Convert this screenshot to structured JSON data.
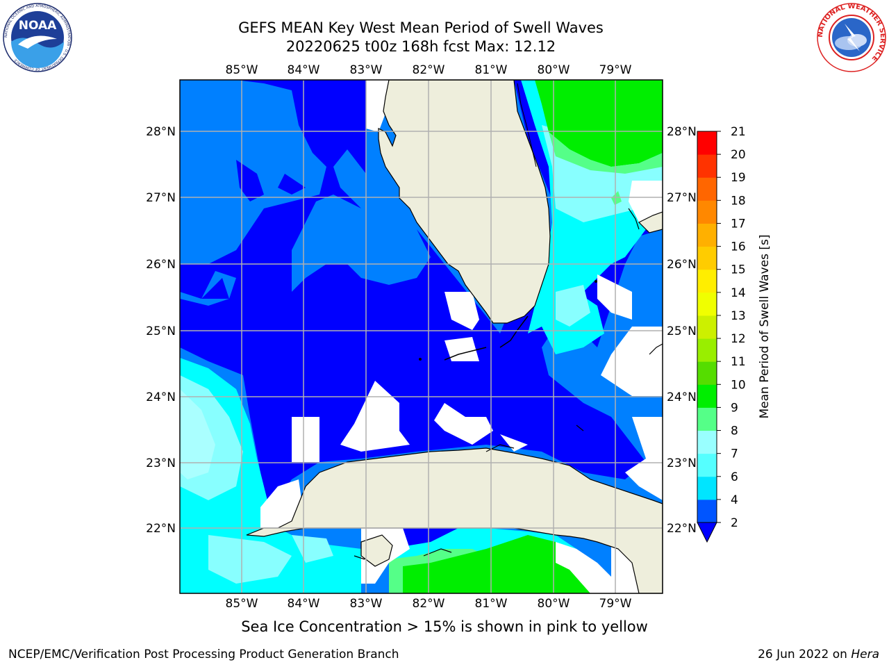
{
  "header": {
    "title_line1": "GEFS MEAN Key West Mean Period of Swell Waves",
    "title_line2": "20220625 t00z 168h fcst   Max: 12.12"
  },
  "logos": {
    "left_icon": "noaa-logo-icon",
    "left_text": "NOAA",
    "left_ring_text": "NATIONAL OCEANIC AND ATMOSPHERIC ADMINISTRATION · U.S. DEPARTMENT OF COMMERCE",
    "right_icon": "nws-logo-icon",
    "right_ring_text": "NATIONAL WEATHER SERVICE"
  },
  "map": {
    "lon_labels": [
      "85°W",
      "84°W",
      "83°W",
      "82°W",
      "81°W",
      "80°W",
      "79°W"
    ],
    "lat_labels": [
      "28°N",
      "27°N",
      "26°N",
      "25°N",
      "24°N",
      "23°N",
      "22°N"
    ],
    "colors": {
      "land": "#eeeedc",
      "grid": "#b0b0b0",
      "period_2_4": "#0000ff",
      "period_4_6": "#0080ff",
      "period_6_8": "#00ffff",
      "period_8_9": "#88ffff",
      "period_9_10": "#55ff88",
      "period_10_11": "#00ee00"
    }
  },
  "colorbar": {
    "label": "Mean Period of Swell Waves [s]",
    "ticks": [
      "2",
      "4",
      "6",
      "7",
      "8",
      "9",
      "10",
      "11",
      "12",
      "13",
      "14",
      "15",
      "16",
      "17",
      "18",
      "19",
      "20",
      "21"
    ],
    "colors": [
      "#0055ff",
      "#00e5ff",
      "#55ffff",
      "#99ffff",
      "#55ff88",
      "#00ee00",
      "#55dd00",
      "#99ee00",
      "#ccf000",
      "#f0ff00",
      "#ffee00",
      "#ffcc00",
      "#ffb000",
      "#ff8800",
      "#ff6600",
      "#ff3300",
      "#ff0000"
    ]
  },
  "subtitle": "Sea Ice Concentration > 15% is shown in pink to yellow",
  "footer": {
    "left": "NCEP/EMC/Verification Post Processing Product Generation Branch",
    "right_date": "26 Jun 2022 on ",
    "right_host": "Hera"
  }
}
